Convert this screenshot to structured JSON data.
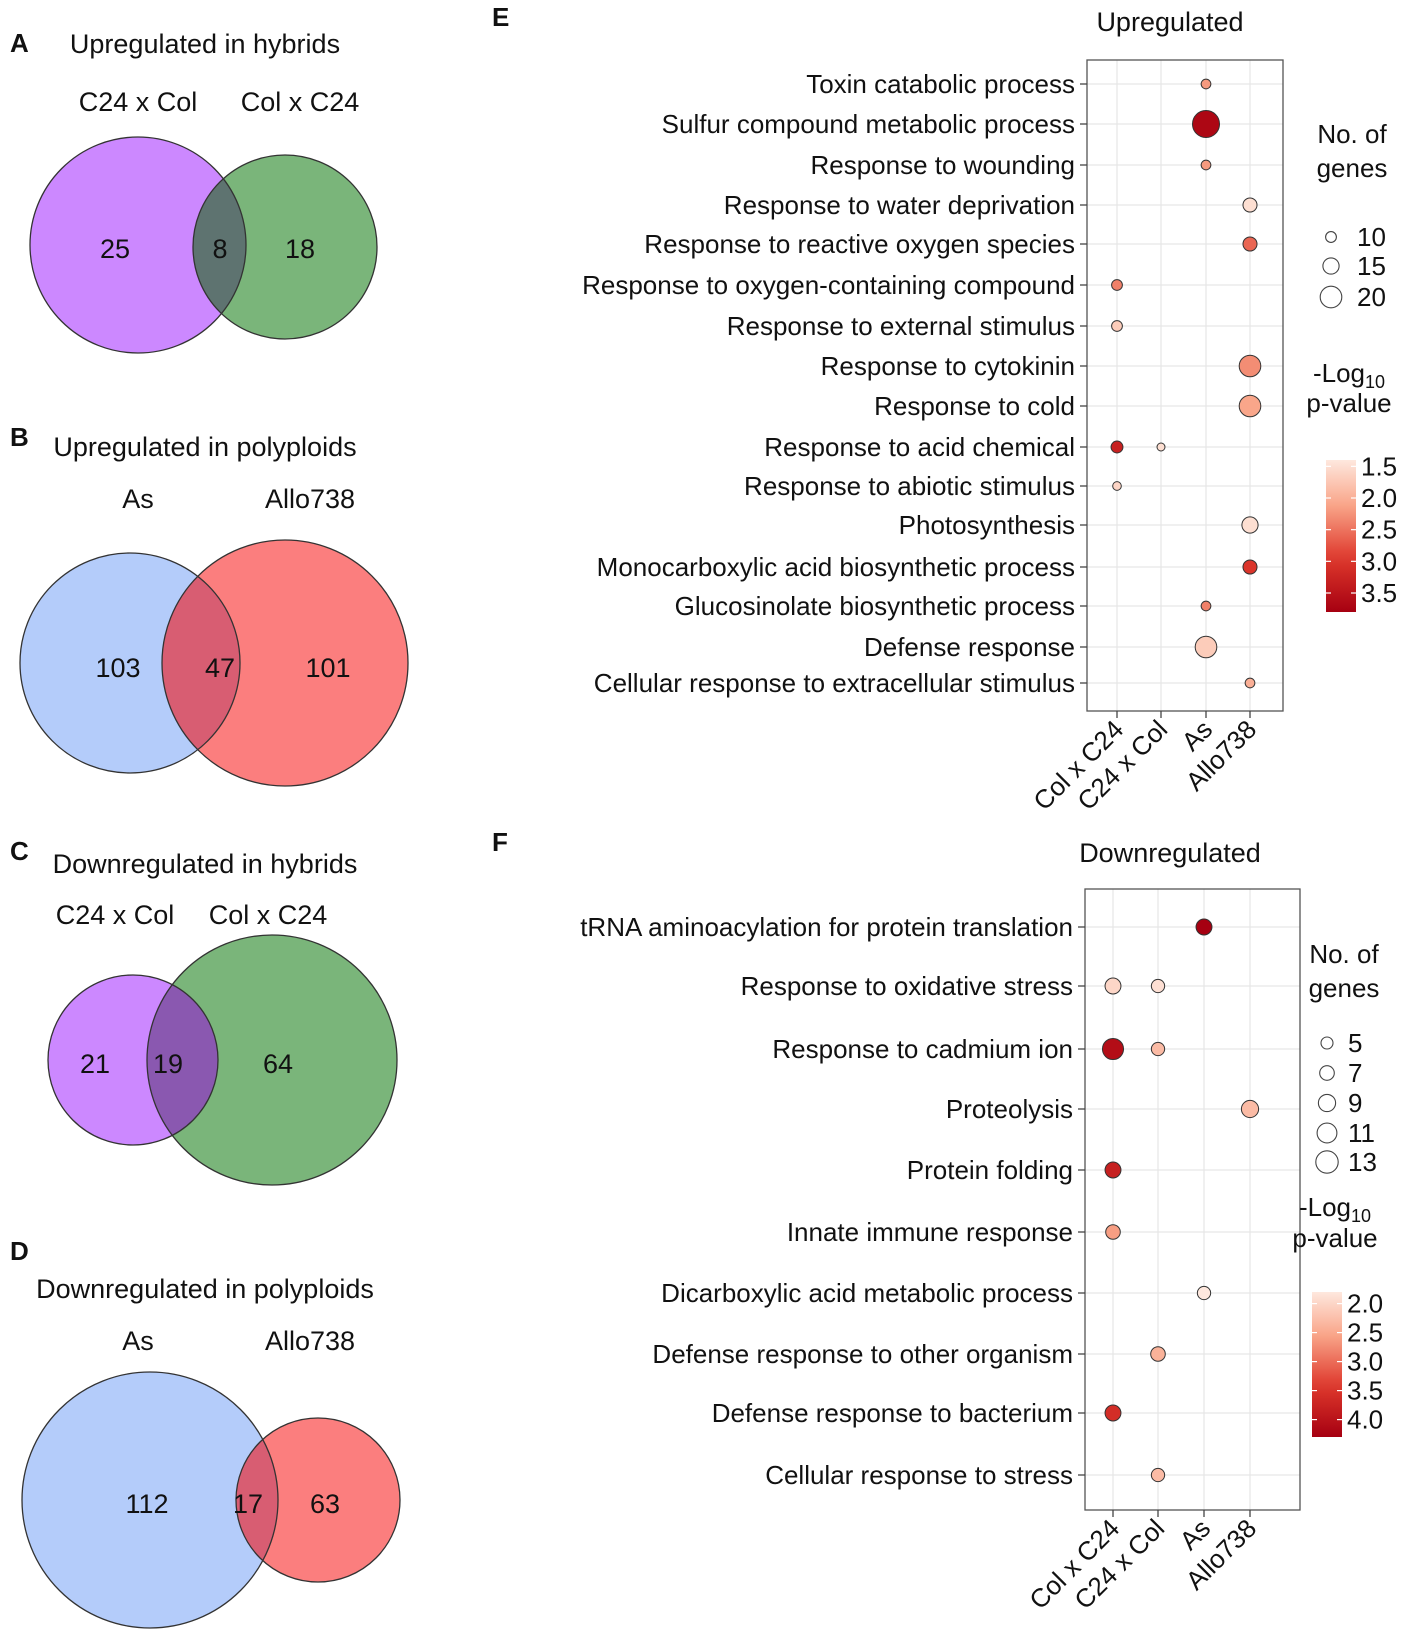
{
  "chart_data": [
    {
      "type": "venn",
      "panel": "A",
      "title": "Upregulated in hybrids",
      "sets": [
        {
          "name": "C24 x Col",
          "only": 25,
          "color": "#cc88ff"
        },
        {
          "name": "Col x C24",
          "only": 18,
          "color": "#7ab57a"
        }
      ],
      "overlap": 8,
      "overlap_color": "#5e7370"
    },
    {
      "type": "venn",
      "panel": "B",
      "title": "Upregulated in polyploids",
      "sets": [
        {
          "name": "As",
          "only": 103,
          "color": "#b4ccfa"
        },
        {
          "name": "Allo738",
          "only": 101,
          "color": "#fb7e7e"
        }
      ],
      "overlap": 47,
      "overlap_color": "#d85d72"
    },
    {
      "type": "venn",
      "panel": "C",
      "title": "Downregulated in hybrids",
      "sets": [
        {
          "name": "C24 x Col",
          "only": 21,
          "color": "#cc88ff"
        },
        {
          "name": "Col x C24",
          "only": 64,
          "color": "#7ab57a"
        }
      ],
      "overlap": 19,
      "overlap_color": "#8a58b0"
    },
    {
      "type": "venn",
      "panel": "D",
      "title": "Downregulated in polyploids",
      "sets": [
        {
          "name": "As",
          "only": 112,
          "color": "#b4ccfa"
        },
        {
          "name": "Allo738",
          "only": 63,
          "color": "#fb7e7e"
        }
      ],
      "overlap": 17,
      "overlap_color": "#d85d72"
    },
    {
      "type": "scatter",
      "panel": "E",
      "title": "Upregulated",
      "categories": [
        "Col x C24",
        "C24 x Col",
        "As",
        "Allo738"
      ],
      "terms": [
        "Toxin catabolic process",
        "Sulfur compound metabolic process",
        "Response to wounding",
        "Response to water deprivation",
        "Response to reactive oxygen species",
        "Response to oxygen-containing compound",
        "Response to external stimulus",
        "Response to cytokinin",
        "Response to cold",
        "Response to acid chemical",
        "Response to abiotic stimulus",
        "Photosynthesis",
        "Monocarboxylic acid biosynthetic process",
        "Glucosinolate biosynthetic process",
        "Defense response",
        "Cellular response to extracellular stimulus"
      ],
      "points": [
        {
          "term": "Toxin catabolic process",
          "category": "As",
          "genes": 9,
          "neglog10p": 2.2
        },
        {
          "term": "Sulfur compound metabolic process",
          "category": "As",
          "genes": 25,
          "neglog10p": 3.7
        },
        {
          "term": "Response to wounding",
          "category": "As",
          "genes": 9,
          "neglog10p": 2.2
        },
        {
          "term": "Response to water deprivation",
          "category": "Allo738",
          "genes": 13,
          "neglog10p": 1.5
        },
        {
          "term": "Response to reactive oxygen species",
          "category": "Allo738",
          "genes": 13,
          "neglog10p": 2.6
        },
        {
          "term": "Response to oxygen-containing compound",
          "category": "Col x C24",
          "genes": 10,
          "neglog10p": 2.4
        },
        {
          "term": "Response to external stimulus",
          "category": "Col x C24",
          "genes": 10,
          "neglog10p": 1.7
        },
        {
          "term": "Response to cytokinin",
          "category": "Allo738",
          "genes": 20,
          "neglog10p": 2.3
        },
        {
          "term": "Response to cold",
          "category": "Allo738",
          "genes": 20,
          "neglog10p": 2.1
        },
        {
          "term": "Response to acid chemical",
          "category": "Col x C24",
          "genes": 11,
          "neglog10p": 3.3
        },
        {
          "term": "Response to acid chemical",
          "category": "C24 x Col",
          "genes": 6,
          "neglog10p": 1.5
        },
        {
          "term": "Response to abiotic stimulus",
          "category": "Col x C24",
          "genes": 8,
          "neglog10p": 1.6
        },
        {
          "term": "Photosynthesis",
          "category": "Allo738",
          "genes": 15,
          "neglog10p": 1.5
        },
        {
          "term": "Monocarboxylic acid biosynthetic process",
          "category": "Allo738",
          "genes": 13,
          "neglog10p": 3.0
        },
        {
          "term": "Glucosinolate biosynthetic process",
          "category": "As",
          "genes": 9,
          "neglog10p": 2.4
        },
        {
          "term": "Defense response",
          "category": "As",
          "genes": 20,
          "neglog10p": 1.7
        },
        {
          "term": "Cellular response to extracellular stimulus",
          "category": "Allo738",
          "genes": 9,
          "neglog10p": 2.0
        }
      ],
      "size_legend": {
        "title": [
          "No. of",
          "genes"
        ],
        "values": [
          10,
          15,
          20
        ]
      },
      "color_legend": {
        "title": [
          "-Log",
          "10",
          "p-value"
        ],
        "ticks": [
          1.5,
          2.0,
          2.5,
          3.0,
          3.5
        ],
        "range": [
          1.4,
          3.8
        ]
      }
    },
    {
      "type": "scatter",
      "panel": "F",
      "title": "Downregulated",
      "categories": [
        "Col x C24",
        "C24 x Col",
        "As",
        "Allo738"
      ],
      "terms": [
        "tRNA aminoacylation for protein translation",
        "Response to oxidative stress",
        "Response to cadmium ion",
        "Proteolysis",
        "Protein folding",
        "Innate immune response",
        "Dicarboxylic acid metabolic process",
        "Defense response to other organism",
        "Defense response to bacterium",
        "Cellular response to stress"
      ],
      "points": [
        {
          "term": "tRNA aminoacylation for protein translation",
          "category": "As",
          "genes": 8,
          "neglog10p": 4.3
        },
        {
          "term": "Response to oxidative stress",
          "category": "Col x C24",
          "genes": 8,
          "neglog10p": 2.0
        },
        {
          "term": "Response to oxidative stress",
          "category": "C24 x Col",
          "genes": 6,
          "neglog10p": 1.9
        },
        {
          "term": "Response to cadmium ion",
          "category": "Col x C24",
          "genes": 12,
          "neglog10p": 4.1
        },
        {
          "term": "Response to cadmium ion",
          "category": "C24 x Col",
          "genes": 6,
          "neglog10p": 2.3
        },
        {
          "term": "Proteolysis",
          "category": "Allo738",
          "genes": 9,
          "neglog10p": 2.3
        },
        {
          "term": "Protein folding",
          "category": "Col x C24",
          "genes": 8,
          "neglog10p": 3.8
        },
        {
          "term": "Innate immune response",
          "category": "Col x C24",
          "genes": 7,
          "neglog10p": 2.6
        },
        {
          "term": "Dicarboxylic acid metabolic process",
          "category": "As",
          "genes": 6,
          "neglog10p": 1.8
        },
        {
          "term": "Defense response to other organism",
          "category": "C24 x Col",
          "genes": 7,
          "neglog10p": 2.4
        },
        {
          "term": "Defense response to bacterium",
          "category": "Col x C24",
          "genes": 8,
          "neglog10p": 3.6
        },
        {
          "term": "Cellular response to stress",
          "category": "C24 x Col",
          "genes": 6,
          "neglog10p": 2.3
        }
      ],
      "size_legend": {
        "title": [
          "No. of",
          "genes"
        ],
        "values": [
          5,
          7,
          9,
          11,
          13
        ]
      },
      "color_legend": {
        "title": [
          "-Log",
          "10",
          "p-value"
        ],
        "ticks": [
          2.0,
          2.5,
          3.0,
          3.5,
          4.0
        ],
        "range": [
          1.8,
          4.3
        ]
      }
    }
  ]
}
